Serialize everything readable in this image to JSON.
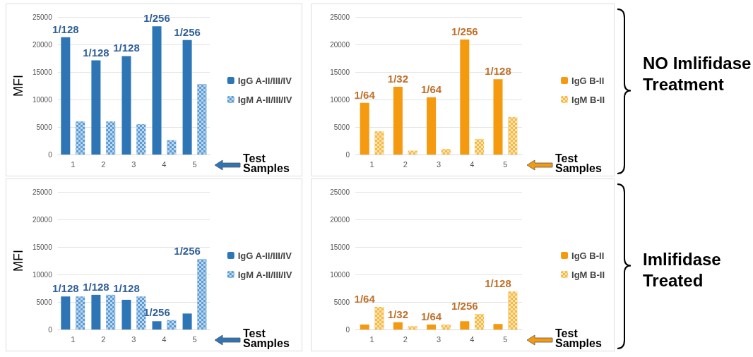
{
  "chart_data": [
    {
      "type": "bar",
      "ylabel": "MFI",
      "xlabel": "Test Samples",
      "categories": [
        "1",
        "2",
        "3",
        "4",
        "5"
      ],
      "ylim": [
        0,
        25000
      ],
      "yticks": [
        0,
        5000,
        10000,
        15000,
        20000,
        25000
      ],
      "grid": "y",
      "legend": "right",
      "series": [
        {
          "name": "IgG A-II/III/IV",
          "color": "#2e75b6",
          "values": [
            21300,
            17100,
            17900,
            23300,
            20800
          ]
        },
        {
          "name": "IgM A-II/III/IV",
          "color": "#5b9bd5",
          "values": [
            6000,
            6000,
            5500,
            2600,
            12800
          ]
        }
      ],
      "annotations": [
        {
          "text": "1/128",
          "x": "1",
          "y": 21300
        },
        {
          "text": "1/128",
          "x": "2",
          "y": 17100
        },
        {
          "text": "1/128",
          "x": "3",
          "y": 17900
        },
        {
          "text": "1/256",
          "x": "4",
          "y": 23300
        },
        {
          "text": "1/256",
          "x": "5",
          "y": 20800
        }
      ]
    },
    {
      "type": "bar",
      "xlabel": "Test Samples",
      "categories": [
        "1",
        "2",
        "3",
        "4",
        "5"
      ],
      "ylim": [
        0,
        25000
      ],
      "yticks": [
        0,
        5000,
        10000,
        15000,
        20000,
        25000
      ],
      "grid": "y",
      "legend": "right",
      "series": [
        {
          "name": "IgG B-II",
          "color": "#f5990f",
          "values": [
            9400,
            12300,
            10400,
            20900,
            13700
          ]
        },
        {
          "name": "IgM B-II",
          "color": "#f7b940",
          "values": [
            4200,
            700,
            1000,
            2800,
            6800
          ]
        }
      ],
      "annotations": [
        {
          "text": "1/64",
          "x": "1",
          "y": 9400
        },
        {
          "text": "1/32",
          "x": "2",
          "y": 12300
        },
        {
          "text": "1/64",
          "x": "3",
          "y": 10400
        },
        {
          "text": "1/256",
          "x": "4",
          "y": 20900
        },
        {
          "text": "1/128",
          "x": "5",
          "y": 13700
        },
        "NO Imlifidase Treatment"
      ]
    },
    {
      "type": "bar",
      "ylabel": "MFI",
      "xlabel": "Test Samples",
      "categories": [
        "1",
        "2",
        "3",
        "4",
        "5"
      ],
      "ylim": [
        0,
        25000
      ],
      "yticks": [
        0,
        5000,
        10000,
        15000,
        20000,
        25000
      ],
      "grid": "y",
      "legend": "right",
      "series": [
        {
          "name": "IgG A-II/III/IV",
          "color": "#2e75b6",
          "values": [
            6000,
            6300,
            5400,
            1500,
            2900
          ]
        },
        {
          "name": "IgM A-II/III/IV",
          "color": "#5b9bd5",
          "values": [
            6000,
            6300,
            6000,
            1700,
            12800
          ]
        }
      ],
      "annotations": [
        {
          "text": "1/128",
          "x": "1",
          "y": 6000
        },
        {
          "text": "1/128",
          "x": "2",
          "y": 6300
        },
        {
          "text": "1/128",
          "x": "3",
          "y": 6000
        },
        {
          "text": "1/256",
          "x": "4",
          "y": 1700
        },
        {
          "text": "1/256",
          "x": "5",
          "y": 12800
        }
      ]
    },
    {
      "type": "bar",
      "xlabel": "Test Samples",
      "categories": [
        "1",
        "2",
        "3",
        "4",
        "5"
      ],
      "ylim": [
        0,
        25000
      ],
      "yticks": [
        0,
        5000,
        10000,
        15000,
        20000,
        25000
      ],
      "grid": "y",
      "legend": "right",
      "series": [
        {
          "name": "IgG B-II",
          "color": "#f5990f",
          "values": [
            900,
            1300,
            900,
            1500,
            1000
          ]
        },
        {
          "name": "IgM B-II",
          "color": "#f7b940",
          "values": [
            4100,
            600,
            900,
            2800,
            6900
          ]
        }
      ],
      "annotations": [
        {
          "text": "1/64",
          "x": "1",
          "y": 4100
        },
        {
          "text": "1/32",
          "x": "2",
          "y": 1300
        },
        {
          "text": "1/64",
          "x": "3",
          "y": 900
        },
        {
          "text": "1/256",
          "x": "4",
          "y": 2800
        },
        {
          "text": "1/128",
          "x": "5",
          "y": 6900
        },
        "Imlifidase Treated"
      ]
    }
  ]
}
